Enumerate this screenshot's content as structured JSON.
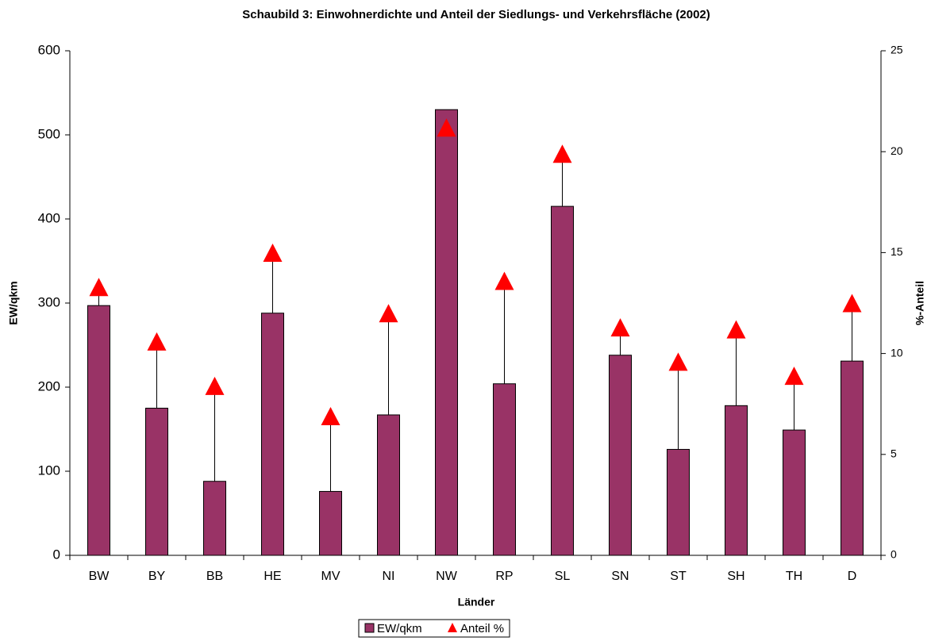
{
  "chart_data": {
    "type": "bar_marker",
    "title": "Schaubild 3: Einwohnerdichte und Anteil der Siedlungs- und Verkehrsfläche (2002)",
    "x_label": "Länder",
    "y_label": "EW/qkm",
    "y2_label": "%-Anteil",
    "categories": [
      "BW",
      "BY",
      "BB",
      "HE",
      "MV",
      "NI",
      "NW",
      "RP",
      "SL",
      "SN",
      "ST",
      "SH",
      "TH",
      "D"
    ],
    "series": [
      {
        "name": "EW/qkm",
        "color": "#993366",
        "values": [
          297,
          175,
          88,
          288,
          76,
          167,
          530,
          204,
          415,
          238,
          126,
          178,
          149,
          231
        ]
      },
      {
        "name": "Anteil %",
        "color": "#ff0000",
        "axis": "y2",
        "values": [
          13.2,
          10.5,
          8.3,
          14.9,
          6.8,
          11.9,
          21.1,
          13.5,
          19.8,
          11.2,
          9.5,
          11.1,
          8.8,
          12.4
        ]
      }
    ],
    "ylim": [
      0,
      600
    ],
    "yticks": [
      0,
      100,
      200,
      300,
      400,
      500,
      600
    ],
    "y2lim": [
      0,
      25
    ],
    "y2ticks": [
      0,
      5,
      10,
      15,
      20,
      25
    ],
    "legend": "bottom"
  }
}
